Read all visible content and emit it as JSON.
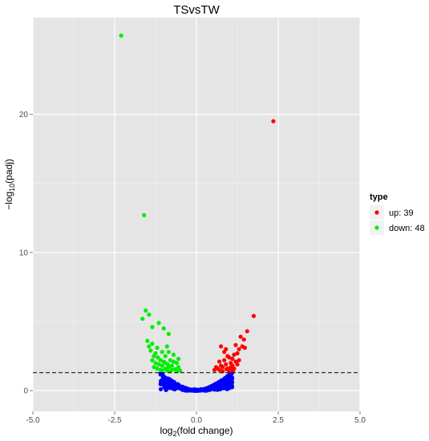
{
  "chart_data": {
    "type": "scatter",
    "title": "TSvsTW",
    "xlabel_main": "log",
    "xlabel_sub": "2",
    "xlabel_rest": "(fold change)",
    "ylabel_prefix": "−log",
    "ylabel_sub": "10",
    "ylabel_rest": "(padj)",
    "xlim": [
      -5.0,
      5.0
    ],
    "ylim": [
      -1.5,
      27.0
    ],
    "x_ticks": [
      "-5.0",
      "-2.5",
      "0.0",
      "2.5",
      "5.0"
    ],
    "x_tick_values": [
      -5.0,
      -2.5,
      0.0,
      2.5,
      5.0
    ],
    "y_ticks": [
      "0",
      "10",
      "20"
    ],
    "y_tick_values": [
      0,
      10,
      20
    ],
    "threshold_y": 1.3,
    "grid": true,
    "legend_position": "right",
    "legend_title": "type",
    "colors": {
      "panel": "#e5e5e5",
      "grid": "#ffffff",
      "up": "#ff0000",
      "down": "#00ee00",
      "noDiff": "#0000ff",
      "threshold": "#000000"
    },
    "series": [
      {
        "name": "up: 39",
        "color": "#ff0000",
        "points": [
          [
            2.35,
            19.5
          ],
          [
            1.75,
            5.4
          ],
          [
            1.55,
            4.3
          ],
          [
            1.45,
            3.7
          ],
          [
            1.35,
            3.9
          ],
          [
            1.4,
            3.2
          ],
          [
            1.3,
            3.0
          ],
          [
            1.25,
            2.7
          ],
          [
            1.2,
            3.3
          ],
          [
            1.15,
            2.6
          ],
          [
            1.1,
            2.3
          ],
          [
            1.05,
            2.0
          ],
          [
            1.0,
            2.4
          ],
          [
            1.05,
            1.7
          ],
          [
            1.1,
            1.8
          ],
          [
            1.2,
            2.1
          ],
          [
            1.15,
            1.6
          ],
          [
            1.25,
            1.9
          ],
          [
            1.05,
            1.5
          ],
          [
            0.95,
            1.6
          ],
          [
            0.9,
            1.9
          ],
          [
            0.85,
            2.2
          ],
          [
            0.8,
            1.7
          ],
          [
            0.75,
            1.8
          ],
          [
            0.85,
            2.8
          ],
          [
            0.75,
            3.2
          ],
          [
            0.9,
            3.0
          ],
          [
            0.95,
            2.5
          ],
          [
            0.7,
            2.1
          ],
          [
            0.65,
            1.6
          ],
          [
            0.7,
            1.5
          ],
          [
            0.6,
            1.7
          ],
          [
            0.55,
            1.5
          ],
          [
            0.8,
            1.4
          ],
          [
            1.0,
            1.4
          ],
          [
            1.12,
            1.45
          ],
          [
            1.3,
            2.2
          ],
          [
            1.48,
            3.1
          ],
          [
            0.92,
            1.55
          ]
        ]
      },
      {
        "name": "down: 48",
        "color": "#00ee00",
        "points": [
          [
            -2.3,
            25.7
          ],
          [
            -1.6,
            12.7
          ],
          [
            -1.55,
            5.8
          ],
          [
            -1.45,
            5.5
          ],
          [
            -1.65,
            5.2
          ],
          [
            -1.35,
            4.6
          ],
          [
            -1.15,
            4.9
          ],
          [
            -0.85,
            4.1
          ],
          [
            -1.0,
            4.5
          ],
          [
            -1.5,
            3.6
          ],
          [
            -1.35,
            3.4
          ],
          [
            -1.45,
            3.2
          ],
          [
            -1.2,
            3.1
          ],
          [
            -0.9,
            3.2
          ],
          [
            -0.85,
            2.8
          ],
          [
            -0.95,
            2.5
          ],
          [
            -1.05,
            2.8
          ],
          [
            -1.25,
            2.7
          ],
          [
            -1.3,
            2.5
          ],
          [
            -1.1,
            2.2
          ],
          [
            -0.95,
            2.0
          ],
          [
            -0.8,
            2.2
          ],
          [
            -0.7,
            2.1
          ],
          [
            -0.75,
            1.8
          ],
          [
            -0.6,
            2.0
          ],
          [
            -0.55,
            1.7
          ],
          [
            -0.65,
            1.55
          ],
          [
            -0.85,
            1.7
          ],
          [
            -1.05,
            1.8
          ],
          [
            -1.15,
            1.9
          ],
          [
            -1.25,
            2.0
          ],
          [
            -1.2,
            1.6
          ],
          [
            -1.1,
            1.5
          ],
          [
            -0.95,
            1.6
          ],
          [
            -0.9,
            1.45
          ],
          [
            -0.75,
            1.5
          ],
          [
            -0.6,
            1.4
          ],
          [
            -0.5,
            1.45
          ],
          [
            -1.3,
            1.7
          ],
          [
            -1.0,
            2.1
          ],
          [
            -0.7,
            2.6
          ],
          [
            -1.4,
            2.9
          ],
          [
            -0.8,
            1.4
          ],
          [
            -1.05,
            1.45
          ],
          [
            -1.35,
            2.2
          ],
          [
            -0.55,
            2.3
          ],
          [
            -1.18,
            2.4
          ],
          [
            -0.88,
            1.9
          ]
        ]
      },
      {
        "name": "noDiff",
        "color": "#0000ff",
        "envelope_halfwidth": 1.1,
        "envelope_top": 1.28
      }
    ]
  }
}
